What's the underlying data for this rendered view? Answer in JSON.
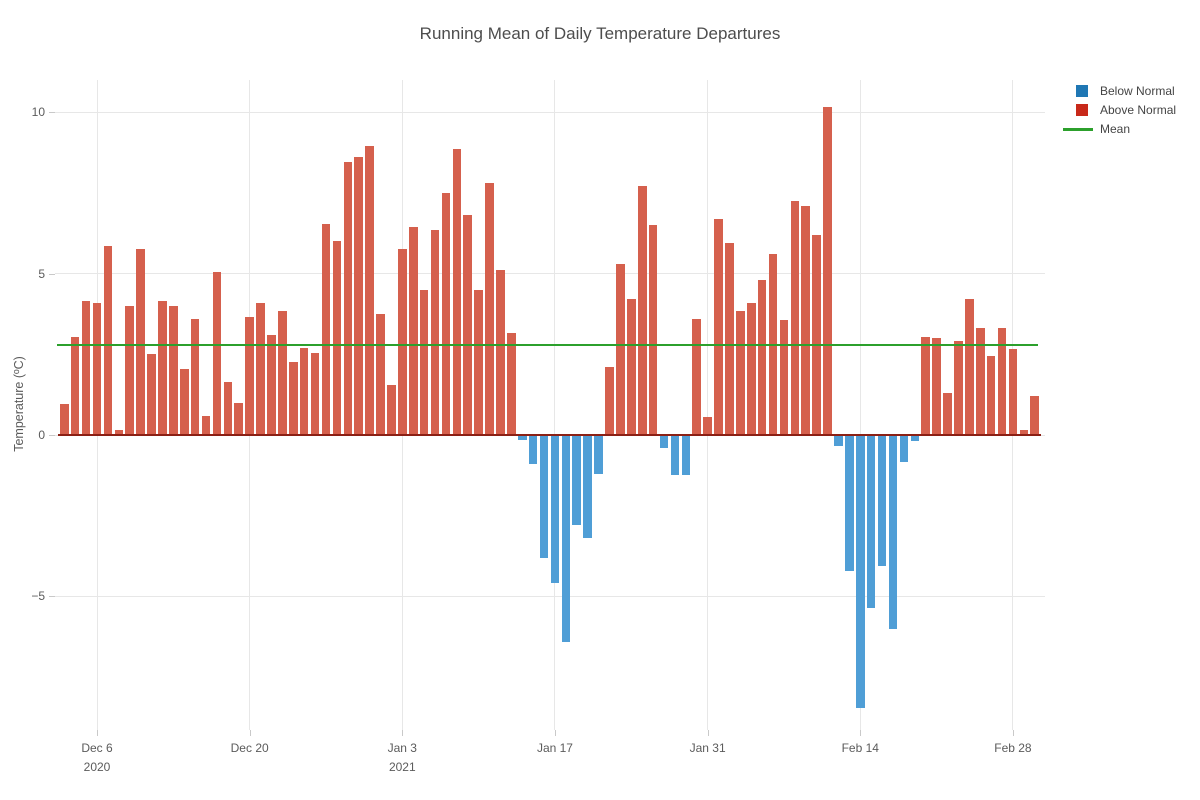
{
  "title": "Running Mean of Daily Temperature Departures",
  "y_axis": {
    "title": "Temperature (ºC)",
    "ticks": [
      {
        "label": "10",
        "value": 10
      },
      {
        "label": "5",
        "value": 5
      },
      {
        "label": "0",
        "value": 0
      },
      {
        "label": "−5",
        "value": -5
      }
    ]
  },
  "x_axis": {
    "ticks": [
      {
        "label": "Dec 6",
        "sublabel": "2020",
        "day_index": 3
      },
      {
        "label": "Dec 20",
        "sublabel": "",
        "day_index": 17
      },
      {
        "label": "Jan 3",
        "sublabel": "2021",
        "day_index": 31
      },
      {
        "label": "Jan 17",
        "sublabel": "",
        "day_index": 45
      },
      {
        "label": "Jan 31",
        "sublabel": "",
        "day_index": 59
      },
      {
        "label": "Feb 14",
        "sublabel": "",
        "day_index": 73
      },
      {
        "label": "Feb 28",
        "sublabel": "",
        "day_index": 87
      }
    ]
  },
  "legend": {
    "items": [
      {
        "label": "Below Normal",
        "swatch": "square",
        "color": "#1f77b4"
      },
      {
        "label": "Above Normal",
        "swatch": "square",
        "color": "#c8291a"
      },
      {
        "label": "Mean",
        "swatch": "line",
        "color": "#2ca02c"
      }
    ]
  },
  "colors": {
    "bar_above": "#d5604d",
    "bar_below": "#4f9ed6",
    "above_full": "#c8291a",
    "below_full": "#1f77b4",
    "mean_line": "#2ca02c",
    "zero_line": "#8b2015",
    "grid": "#e7e7e7",
    "tick": "#c9c9c9",
    "axis_text": "#5b5b5b",
    "title_text": "#4d4d4d"
  },
  "chart_data": {
    "type": "bar",
    "title": "Running Mean of Daily Temperature Departures",
    "xlabel": "",
    "ylabel": "Temperature (ºC)",
    "grid": true,
    "legend_position": "top-right",
    "ylim": [
      -9.3,
      11.1
    ],
    "yticks": [
      10,
      5,
      0,
      -5
    ],
    "xticks": [
      "Dec 6 2020",
      "Dec 20",
      "Jan 3 2021",
      "Jan 17",
      "Jan 31",
      "Feb 14",
      "Feb 28"
    ],
    "mean_line": 2.8,
    "color_by_sign": {
      "above": "Above Normal",
      "below": "Below Normal"
    },
    "x": [
      "2020-12-03",
      "2020-12-04",
      "2020-12-05",
      "2020-12-06",
      "2020-12-07",
      "2020-12-08",
      "2020-12-09",
      "2020-12-10",
      "2020-12-11",
      "2020-12-12",
      "2020-12-13",
      "2020-12-14",
      "2020-12-15",
      "2020-12-16",
      "2020-12-17",
      "2020-12-18",
      "2020-12-19",
      "2020-12-20",
      "2020-12-21",
      "2020-12-22",
      "2020-12-23",
      "2020-12-24",
      "2020-12-25",
      "2020-12-26",
      "2020-12-27",
      "2020-12-28",
      "2020-12-29",
      "2020-12-30",
      "2020-12-31",
      "2021-01-01",
      "2021-01-02",
      "2021-01-03",
      "2021-01-04",
      "2021-01-05",
      "2021-01-06",
      "2021-01-07",
      "2021-01-08",
      "2021-01-09",
      "2021-01-10",
      "2021-01-11",
      "2021-01-12",
      "2021-01-13",
      "2021-01-14",
      "2021-01-15",
      "2021-01-16",
      "2021-01-17",
      "2021-01-18",
      "2021-01-19",
      "2021-01-20",
      "2021-01-21",
      "2021-01-22",
      "2021-01-23",
      "2021-01-24",
      "2021-01-25",
      "2021-01-26",
      "2021-01-27",
      "2021-01-28",
      "2021-01-29",
      "2021-01-30",
      "2021-01-31",
      "2021-02-01",
      "2021-02-02",
      "2021-02-03",
      "2021-02-04",
      "2021-02-05",
      "2021-02-06",
      "2021-02-07",
      "2021-02-08",
      "2021-02-09",
      "2021-02-10",
      "2021-02-11",
      "2021-02-12",
      "2021-02-13",
      "2021-02-14",
      "2021-02-15",
      "2021-02-16",
      "2021-02-17",
      "2021-02-18",
      "2021-02-19",
      "2021-02-20",
      "2021-02-21",
      "2021-02-22",
      "2021-02-23",
      "2021-02-24",
      "2021-02-25",
      "2021-02-26",
      "2021-02-27",
      "2021-02-28",
      "2021-03-01",
      "2021-03-02"
    ],
    "values": [
      0.95,
      3.05,
      4.15,
      4.1,
      5.85,
      0.15,
      4.0,
      5.75,
      2.5,
      4.15,
      4.0,
      2.05,
      3.6,
      0.6,
      5.05,
      1.65,
      1.0,
      3.65,
      4.1,
      3.1,
      3.85,
      2.25,
      2.7,
      2.55,
      6.55,
      6.0,
      8.45,
      8.6,
      8.95,
      3.75,
      1.55,
      5.75,
      6.45,
      4.5,
      6.35,
      7.5,
      8.85,
      6.8,
      4.5,
      7.8,
      5.1,
      3.15,
      -0.15,
      -0.9,
      -3.8,
      -4.6,
      -6.4,
      -2.8,
      -3.2,
      -1.2,
      2.1,
      5.3,
      4.2,
      7.7,
      6.5,
      -0.4,
      -1.25,
      -1.25,
      3.6,
      0.55,
      6.7,
      5.95,
      3.85,
      4.1,
      4.8,
      5.6,
      3.55,
      7.25,
      7.1,
      6.2,
      10.15,
      -0.35,
      -4.2,
      -8.45,
      -5.35,
      -4.05,
      -6.0,
      -0.85,
      -0.2,
      3.05,
      3.0,
      1.3,
      2.9,
      4.2,
      3.3,
      2.45,
      3.3,
      2.65,
      0.15,
      1.2
    ]
  }
}
